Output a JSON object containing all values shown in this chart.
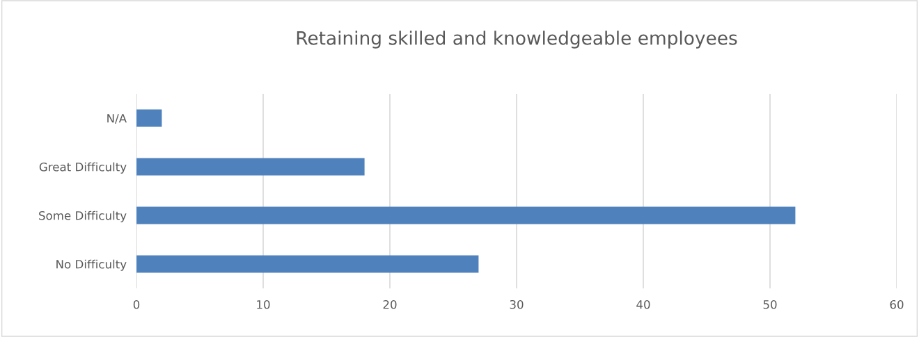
{
  "chart_data": {
    "type": "bar",
    "orientation": "horizontal",
    "title": "Retaining skilled and knowledgeable employees",
    "categories": [
      "N/A",
      "Great Difficulty",
      "Some Difficulty",
      "No Difficulty"
    ],
    "values": [
      2,
      18,
      52,
      27
    ],
    "color": "#4f81bd",
    "xlim": [
      0,
      60
    ],
    "xticks": [
      0,
      10,
      20,
      30,
      40,
      50,
      60
    ],
    "grid": "x",
    "legend": false
  }
}
